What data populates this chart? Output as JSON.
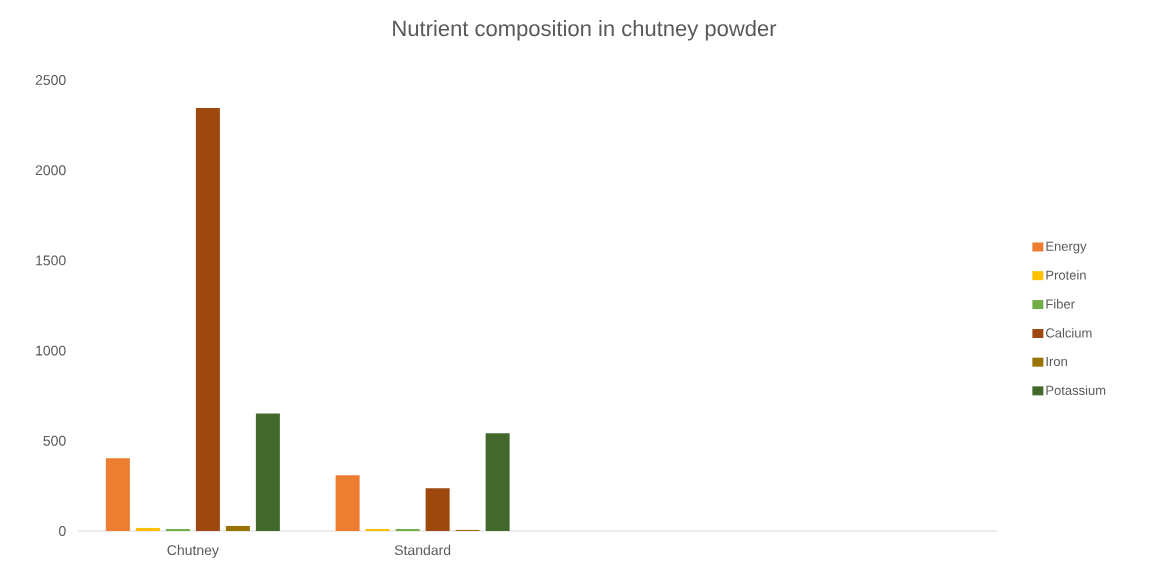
{
  "chart_data": {
    "type": "bar",
    "title": "Nutrient composition in chutney powder",
    "categories": [
      "Chutney",
      "Standard",
      null,
      null
    ],
    "series": [
      {
        "name": "Energy",
        "color": "#ed7d31",
        "values": [
          403,
          309,
          null,
          null
        ]
      },
      {
        "name": "Protein",
        "color": "#ffc000",
        "values": [
          17,
          11,
          null,
          null
        ]
      },
      {
        "name": "Fiber",
        "color": "#70ad47",
        "values": [
          11,
          11,
          null,
          null
        ]
      },
      {
        "name": "Calcium",
        "color": "#9e480e",
        "values": [
          2345,
          237,
          null,
          null
        ]
      },
      {
        "name": "Iron",
        "color": "#997300",
        "values": [
          28,
          6,
          null,
          null
        ]
      },
      {
        "name": "Potassium",
        "color": "#43682b",
        "values": [
          652,
          542,
          null,
          null
        ]
      }
    ],
    "ylim": [
      0,
      2500
    ],
    "yticks": [
      0,
      500,
      1000,
      1500,
      2000,
      2500
    ],
    "legend": "right"
  }
}
